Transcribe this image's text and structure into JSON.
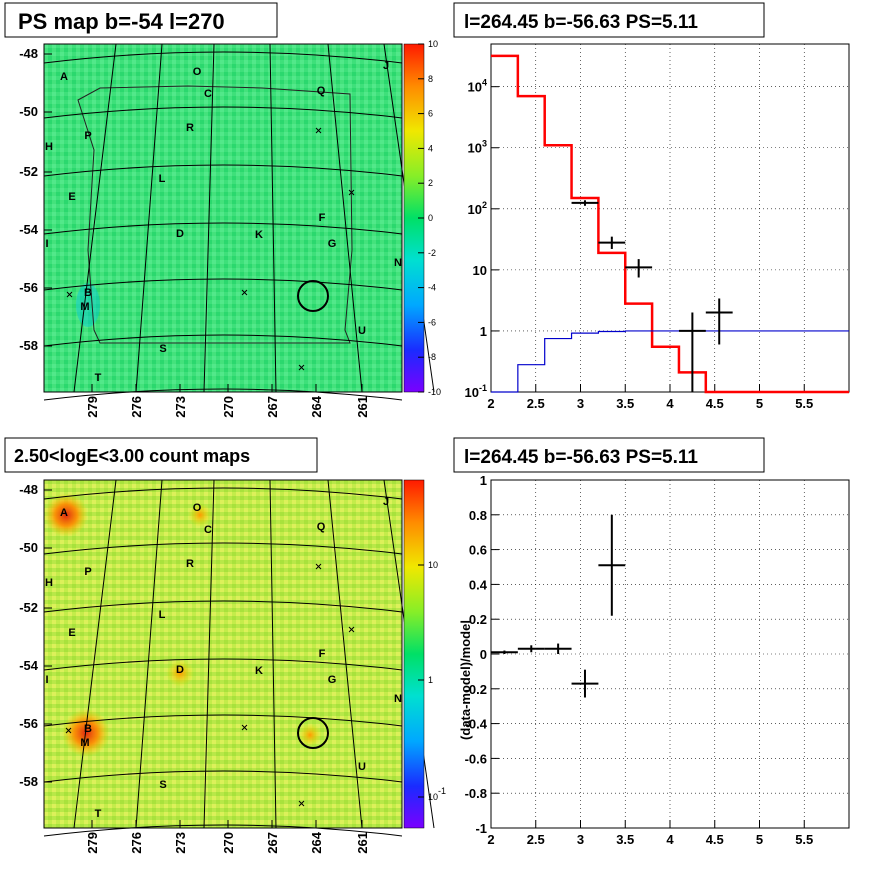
{
  "panels": {
    "ps_map": {
      "title": "PS map b=-54 l=270",
      "y_ticks": [
        "-48",
        "-50",
        "-52",
        "-54",
        "-56",
        "-58"
      ],
      "x_ticks": [
        "279",
        "276",
        "273",
        "270",
        "267",
        "264",
        "261"
      ],
      "colorbar_ticks": [
        "10",
        "8",
        "6",
        "4",
        "2",
        "0",
        "-2",
        "-4",
        "-6",
        "-8",
        "-10"
      ],
      "labels": [
        "A",
        "O",
        "J",
        "C",
        "Q",
        "P",
        "R",
        "H",
        "L",
        "E",
        "F",
        "D",
        "K",
        "G",
        "I",
        "N",
        "B",
        "M",
        "U",
        "S",
        "T"
      ]
    },
    "spectrum": {
      "title": "l=264.45 b=-56.63 PS=5.11",
      "y_ticks": [
        "10^{-1}",
        "1",
        "10",
        "10^{2}",
        "10^{3}",
        "10^{4}"
      ],
      "x_ticks": [
        "2",
        "2.5",
        "3",
        "3.5",
        "4",
        "4.5",
        "5",
        "5.5"
      ]
    },
    "count_map": {
      "title": "2.50<logE<3.00 count maps",
      "y_ticks": [
        "-48",
        "-50",
        "-52",
        "-54",
        "-56",
        "-58"
      ],
      "x_ticks": [
        "279",
        "276",
        "273",
        "270",
        "267",
        "264",
        "261"
      ],
      "colorbar_ticks": [
        "10",
        "1",
        "10^{-1}"
      ],
      "labels": [
        "A",
        "O",
        "J",
        "C",
        "Q",
        "P",
        "R",
        "H",
        "L",
        "E",
        "F",
        "D",
        "K",
        "G",
        "I",
        "N",
        "B",
        "M",
        "U",
        "S",
        "T"
      ]
    },
    "residual": {
      "title": "l=264.45 b=-56.63 PS=5.11",
      "ylabel": "(data-model)/model",
      "y_ticks": [
        "-1",
        "-0.8",
        "-0.6",
        "-0.4",
        "-0.2",
        "0",
        "0.2",
        "0.4",
        "0.6",
        "0.8",
        "1"
      ],
      "x_ticks": [
        "2",
        "2.5",
        "3",
        "3.5",
        "4",
        "4.5",
        "5",
        "5.5"
      ]
    }
  },
  "chart_data": [
    {
      "type": "heatmap",
      "title": "PS map b=-54 l=270",
      "xlabel": "",
      "ylabel": "",
      "xlim": [
        281,
        259
      ],
      "ylim": [
        -59.5,
        -47.5
      ],
      "zlim": [
        -10,
        10
      ],
      "colors": {
        "background": "#2ee88a",
        "marker_circle": "#000000"
      },
      "source_circle": {
        "l": 264.45,
        "b": -56.63
      }
    },
    {
      "type": "line",
      "title": "l=264.45 b=-56.63 PS=5.11",
      "xlabel": "",
      "ylabel": "",
      "xlim": [
        2,
        6
      ],
      "ylim": [
        0.1,
        50000
      ],
      "yscale": "log",
      "grid": true,
      "series": [
        {
          "color": "#ff0000",
          "style": "step",
          "edges": [
            2,
            2.3,
            2.6,
            2.9,
            3.2,
            3.5,
            3.8,
            4.1,
            4.4,
            6
          ],
          "values": [
            32000,
            7000,
            1100,
            150,
            19,
            2.8,
            0.55,
            0.21,
            0.1
          ]
        },
        {
          "color": "#0000cc",
          "style": "step",
          "edges": [
            2,
            2.3,
            2.6,
            2.9,
            3.2,
            3.5,
            3.8,
            4.1,
            4.4,
            6
          ],
          "values": [
            0.05,
            0.28,
            0.75,
            0.92,
            0.98,
            1.0,
            1.0,
            1.0,
            1.0
          ]
        },
        {
          "color": "#000000",
          "style": "errorbar",
          "points": [
            {
              "x": 3.05,
              "y": 125,
              "xerr": 0.15,
              "ylo": 112,
              "yhi": 138
            },
            {
              "x": 3.35,
              "y": 28,
              "xerr": 0.15,
              "ylo": 22,
              "yhi": 35
            },
            {
              "x": 3.65,
              "y": 11,
              "xerr": 0.15,
              "ylo": 7.5,
              "yhi": 15
            },
            {
              "x": 4.25,
              "y": 1.0,
              "xerr": 0.15,
              "ylo": 0.1,
              "yhi": 2.0
            },
            {
              "x": 4.55,
              "y": 2.0,
              "xerr": 0.15,
              "ylo": 0.6,
              "yhi": 3.4
            }
          ]
        }
      ]
    },
    {
      "type": "heatmap",
      "title": "2.50<logE<3.00 count maps",
      "xlabel": "",
      "ylabel": "",
      "xlim": [
        281,
        259
      ],
      "ylim": [
        -59.5,
        -47.5
      ],
      "zscale": "log",
      "colors": {
        "background": "#c8f050",
        "marker_circle": "#000000"
      },
      "source_circle": {
        "l": 264.45,
        "b": -56.63
      }
    },
    {
      "type": "scatter",
      "title": "l=264.45 b=-56.63 PS=5.11",
      "xlabel": "",
      "ylabel": "(data-model)/model",
      "xlim": [
        2,
        6
      ],
      "ylim": [
        -1,
        1
      ],
      "grid": true,
      "series": [
        {
          "color": "#000000",
          "style": "errorbar",
          "points": [
            {
              "x": 2.15,
              "y": 0.01,
              "xerr": 0.15,
              "ylo": 0.0,
              "yhi": 0.02
            },
            {
              "x": 2.45,
              "y": 0.03,
              "xerr": 0.15,
              "ylo": 0.01,
              "yhi": 0.05
            },
            {
              "x": 2.75,
              "y": 0.03,
              "xerr": 0.15,
              "ylo": 0.0,
              "yhi": 0.06
            },
            {
              "x": 3.05,
              "y": -0.17,
              "xerr": 0.15,
              "ylo": -0.25,
              "yhi": -0.09
            },
            {
              "x": 3.35,
              "y": 0.51,
              "xerr": 0.15,
              "ylo": 0.22,
              "yhi": 0.8
            }
          ]
        }
      ]
    }
  ]
}
